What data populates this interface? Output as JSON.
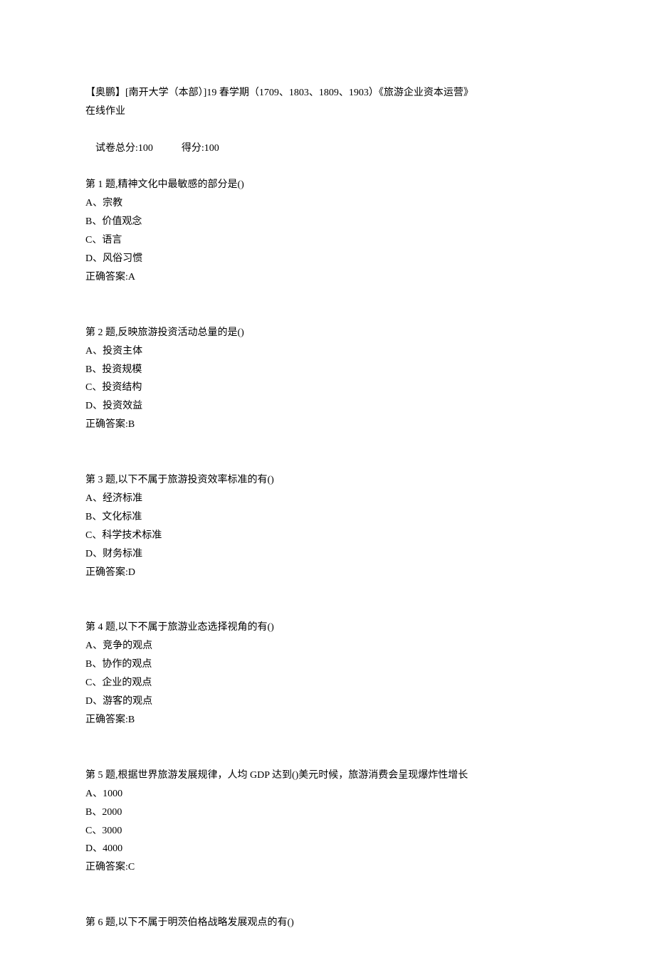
{
  "header": {
    "title_line1": "【奥鹏】[南开大学（本部）]19 春学期（1709、1803、1809、1903）《旅游企业资本运营》",
    "title_line2": "在线作业",
    "score_label": "试卷总分:100",
    "result_label": "得分:100"
  },
  "questions": [
    {
      "prompt": "第 1 题,精神文化中最敏感的部分是()",
      "options": [
        "A、宗教",
        "B、价值观念",
        "C、语言",
        "D、风俗习惯"
      ],
      "answer": "正确答案:A"
    },
    {
      "prompt": "第 2 题,反映旅游投资活动总量的是()",
      "options": [
        "A、投资主体",
        "B、投资规模",
        "C、投资结构",
        "D、投资效益"
      ],
      "answer": "正确答案:B"
    },
    {
      "prompt": "第 3 题,以下不属于旅游投资效率标准的有()",
      "options": [
        "A、经济标准",
        "B、文化标准",
        "C、科学技术标准",
        "D、财务标准"
      ],
      "answer": "正确答案:D"
    },
    {
      "prompt": "第 4 题,以下不属于旅游业态选择视角的有()",
      "options": [
        "A、竞争的观点",
        "B、协作的观点",
        "C、企业的观点",
        "D、游客的观点"
      ],
      "answer": "正确答案:B"
    },
    {
      "prompt": "第 5 题,根据世界旅游发展规律，人均 GDP 达到()美元时候，旅游消费会呈现爆炸性增长",
      "options": [
        "A、1000",
        "B、2000",
        "C、3000",
        "D、4000"
      ],
      "answer": "正确答案:C"
    },
    {
      "prompt": "第 6 题,以下不属于明茨伯格战略发展观点的有()",
      "options": [],
      "answer": null
    }
  ]
}
